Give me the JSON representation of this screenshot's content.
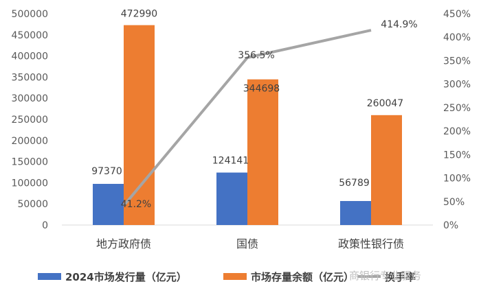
{
  "chart_data": {
    "type": "bar+line",
    "categories": [
      "地方政府债",
      "国债",
      "政策性银行债"
    ],
    "series": [
      {
        "name": "2024市场发行量（亿元）",
        "type": "bar",
        "axis": "left",
        "color": "#4472c4",
        "values": [
          97370,
          124141,
          56789
        ],
        "labels": [
          "97370",
          "124141",
          "56789"
        ]
      },
      {
        "name": "市场存量余额（亿元）",
        "type": "bar",
        "axis": "left",
        "color": "#ed7d31",
        "values": [
          472990,
          344698,
          260047
        ],
        "labels": [
          "472990",
          "344698",
          "260047"
        ]
      },
      {
        "name": "换手率",
        "type": "line",
        "axis": "right",
        "color": "#a5a5a5",
        "values": [
          41.2,
          356.5,
          414.9
        ],
        "labels": [
          "41.2%",
          "356.5%",
          "414.9%"
        ]
      }
    ],
    "y_left": {
      "min": 0,
      "max": 500000,
      "step": 50000
    },
    "y_right": {
      "min": 0,
      "max": 450,
      "step": 50,
      "unit": "%"
    },
    "legend_position": "bottom",
    "grid": false
  },
  "watermark": "商银行专业服务"
}
